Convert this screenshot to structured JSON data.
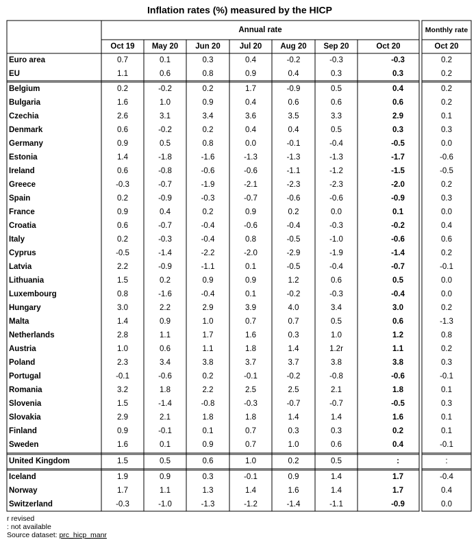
{
  "title": "Inflation rates (%) measured by the HICP",
  "table": {
    "annual_header": "Annual rate",
    "monthly_header": "Monthly rate",
    "columns": [
      "Oct 19",
      "May 20",
      "Jun 20",
      "Jul 20",
      "Aug 20",
      "Sep 20",
      "Oct 20"
    ],
    "monthly_column": "Oct 20",
    "groups": [
      [
        {
          "name": "Euro area",
          "annual": [
            "0.7",
            "0.1",
            "0.3",
            "0.4",
            "-0.2",
            "-0.3",
            "-0.3"
          ],
          "monthly": "0.2"
        },
        {
          "name": "EU",
          "annual": [
            "1.1",
            "0.6",
            "0.8",
            "0.9",
            "0.4",
            "0.3",
            "0.3"
          ],
          "monthly": "0.2"
        }
      ],
      [
        {
          "name": "Belgium",
          "annual": [
            "0.2",
            "-0.2",
            "0.2",
            "1.7",
            "-0.9",
            "0.5",
            "0.4"
          ],
          "monthly": "0.2"
        },
        {
          "name": "Bulgaria",
          "annual": [
            "1.6",
            "1.0",
            "0.9",
            "0.4",
            "0.6",
            "0.6",
            "0.6"
          ],
          "monthly": "0.2"
        },
        {
          "name": "Czechia",
          "annual": [
            "2.6",
            "3.1",
            "3.4",
            "3.6",
            "3.5",
            "3.3",
            "2.9"
          ],
          "monthly": "0.1"
        },
        {
          "name": "Denmark",
          "annual": [
            "0.6",
            "-0.2",
            "0.2",
            "0.4",
            "0.4",
            "0.5",
            "0.3"
          ],
          "monthly": "0.3"
        },
        {
          "name": "Germany",
          "annual": [
            "0.9",
            "0.5",
            "0.8",
            "0.0",
            "-0.1",
            "-0.4",
            "-0.5"
          ],
          "monthly": "0.0"
        },
        {
          "name": "Estonia",
          "annual": [
            "1.4",
            "-1.8",
            "-1.6",
            "-1.3",
            "-1.3",
            "-1.3",
            "-1.7"
          ],
          "monthly": "-0.6"
        },
        {
          "name": "Ireland",
          "annual": [
            "0.6",
            "-0.8",
            "-0.6",
            "-0.6",
            "-1.1",
            "-1.2",
            "-1.5"
          ],
          "monthly": "-0.5"
        },
        {
          "name": "Greece",
          "annual": [
            "-0.3",
            "-0.7",
            "-1.9",
            "-2.1",
            "-2.3",
            "-2.3",
            "-2.0"
          ],
          "monthly": "0.2"
        },
        {
          "name": "Spain",
          "annual": [
            "0.2",
            "-0.9",
            "-0.3",
            "-0.7",
            "-0.6",
            "-0.6",
            "-0.9"
          ],
          "monthly": "0.3"
        },
        {
          "name": "France",
          "annual": [
            "0.9",
            "0.4",
            "0.2",
            "0.9",
            "0.2",
            "0.0",
            "0.1"
          ],
          "monthly": "0.0"
        },
        {
          "name": "Croatia",
          "annual": [
            "0.6",
            "-0.7",
            "-0.4",
            "-0.6",
            "-0.4",
            "-0.3",
            "-0.2"
          ],
          "monthly": "0.4"
        },
        {
          "name": "Italy",
          "annual": [
            "0.2",
            "-0.3",
            "-0.4",
            "0.8",
            "-0.5",
            "-1.0",
            "-0.6"
          ],
          "monthly": "0.6"
        },
        {
          "name": "Cyprus",
          "annual": [
            "-0.5",
            "-1.4",
            "-2.2",
            "-2.0",
            "-2.9",
            "-1.9",
            "-1.4"
          ],
          "monthly": "0.2"
        },
        {
          "name": "Latvia",
          "annual": [
            "2.2",
            "-0.9",
            "-1.1",
            "0.1",
            "-0.5",
            "-0.4",
            "-0.7"
          ],
          "monthly": "-0.1"
        },
        {
          "name": "Lithuania",
          "annual": [
            "1.5",
            "0.2",
            "0.9",
            "0.9",
            "1.2",
            "0.6",
            "0.5"
          ],
          "monthly": "0.0"
        },
        {
          "name": "Luxembourg",
          "annual": [
            "0.8",
            "-1.6",
            "-0.4",
            "0.1",
            "-0.2",
            "-0.3",
            "-0.4"
          ],
          "monthly": "0.0"
        },
        {
          "name": "Hungary",
          "annual": [
            "3.0",
            "2.2",
            "2.9",
            "3.9",
            "4.0",
            "3.4",
            "3.0"
          ],
          "monthly": "0.2"
        },
        {
          "name": "Malta",
          "annual": [
            "1.4",
            "0.9",
            "1.0",
            "0.7",
            "0.7",
            "0.5",
            "0.6"
          ],
          "monthly": "-1.3"
        },
        {
          "name": "Netherlands",
          "annual": [
            "2.8",
            "1.1",
            "1.7",
            "1.6",
            "0.3",
            "1.0",
            "1.2"
          ],
          "monthly": "0.8"
        },
        {
          "name": "Austria",
          "annual": [
            "1.0",
            "0.6",
            "1.1",
            "1.8",
            "1.4",
            "1.2r",
            "1.1"
          ],
          "monthly": "0.2"
        },
        {
          "name": "Poland",
          "annual": [
            "2.3",
            "3.4",
            "3.8",
            "3.7",
            "3.7",
            "3.8",
            "3.8"
          ],
          "monthly": "0.3"
        },
        {
          "name": "Portugal",
          "annual": [
            "-0.1",
            "-0.6",
            "0.2",
            "-0.1",
            "-0.2",
            "-0.8",
            "-0.6"
          ],
          "monthly": "-0.1"
        },
        {
          "name": "Romania",
          "annual": [
            "3.2",
            "1.8",
            "2.2",
            "2.5",
            "2.5",
            "2.1",
            "1.8"
          ],
          "monthly": "0.1"
        },
        {
          "name": "Slovenia",
          "annual": [
            "1.5",
            "-1.4",
            "-0.8",
            "-0.3",
            "-0.7",
            "-0.7",
            "-0.5"
          ],
          "monthly": "0.3"
        },
        {
          "name": "Slovakia",
          "annual": [
            "2.9",
            "2.1",
            "1.8",
            "1.8",
            "1.4",
            "1.4",
            "1.6"
          ],
          "monthly": "0.1"
        },
        {
          "name": "Finland",
          "annual": [
            "0.9",
            "-0.1",
            "0.1",
            "0.7",
            "0.3",
            "0.3",
            "0.2"
          ],
          "monthly": "0.1"
        },
        {
          "name": "Sweden",
          "annual": [
            "1.6",
            "0.1",
            "0.9",
            "0.7",
            "1.0",
            "0.6",
            "0.4"
          ],
          "monthly": "-0.1"
        }
      ],
      [
        {
          "name": "United Kingdom",
          "annual": [
            "1.5",
            "0.5",
            "0.6",
            "1.0",
            "0.2",
            "0.5",
            ":"
          ],
          "monthly": ":"
        }
      ],
      [
        {
          "name": "Iceland",
          "annual": [
            "1.9",
            "0.9",
            "0.3",
            "-0.1",
            "0.9",
            "1.4",
            "1.7"
          ],
          "monthly": "-0.4"
        },
        {
          "name": "Norway",
          "annual": [
            "1.7",
            "1.1",
            "1.3",
            "1.4",
            "1.6",
            "1.4",
            "1.7"
          ],
          "monthly": "0.4"
        },
        {
          "name": "Switzerland",
          "annual": [
            "-0.3",
            "-1.0",
            "-1.3",
            "-1.2",
            "-1.4",
            "-1.1",
            "-0.9"
          ],
          "monthly": "0.0"
        }
      ]
    ]
  },
  "footnotes": [
    "r revised",
    ": not available"
  ],
  "source": {
    "label": "Source dataset:",
    "link": "prc_hicp_manr"
  }
}
